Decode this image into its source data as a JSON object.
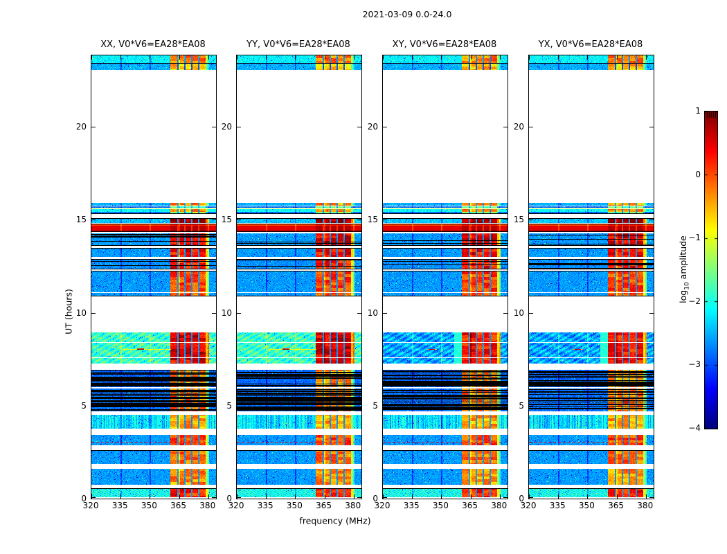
{
  "figure": {
    "title": "2021-03-09 0.0-24.0"
  },
  "axes": {
    "xlabel": "frequency (MHz)",
    "ylabel": "UT (hours)",
    "xlim": [
      320,
      384
    ],
    "ylim": [
      0,
      23.85
    ],
    "xticks": [
      320,
      335,
      350,
      365,
      380
    ],
    "yticks": [
      0,
      5,
      10,
      15,
      20
    ]
  },
  "colorbar": {
    "label_pre": "log",
    "label_sub": "10",
    "label_post": " amplitude",
    "tick_labels": [
      "1",
      "0",
      "−1",
      "−2",
      "−3",
      "−4"
    ],
    "vmin": -4,
    "vmax": 1,
    "colormap": "jet"
  },
  "chart_data": {
    "type": "heatmap",
    "title": "2021-03-09 0.0-24.0",
    "xlabel": "frequency (MHz)",
    "ylabel": "UT (hours)",
    "value_label": "log10 amplitude",
    "value_range": [
      -4,
      1
    ],
    "colormap": "jet",
    "x_range_mhz": [
      320,
      384
    ],
    "y_range_hours": [
      0,
      23.85
    ],
    "panels": [
      {
        "label": "XX, V0*V6=EA28*EA08",
        "polarization": "XX"
      },
      {
        "label": "YY, V0*V6=EA28*EA08",
        "polarization": "YY"
      },
      {
        "label": "XY, V0*V6=EA28*EA08",
        "polarization": "XY"
      },
      {
        "label": "YX, V0*V6=EA28*EA08",
        "polarization": "YX"
      }
    ],
    "rfi_band": {
      "f0": 360.3,
      "f1": 378.6,
      "fade_f1": 380.4,
      "separators": [
        364.2,
        367.8,
        371.4,
        375.0
      ]
    },
    "grid_freqs": [
      335,
      350,
      365,
      380
    ],
    "time_bands": [
      {
        "t0": 0.06,
        "t1": 0.55,
        "base": -2.05,
        "rfi": 0.25,
        "style": "hatch",
        "edgeTop": "black"
      },
      {
        "t0": 0.75,
        "t1": 1.6,
        "base": -2.6,
        "rfi": -0.35,
        "style": "plain"
      },
      {
        "t0": 1.85,
        "t1": 2.62,
        "base": -2.6,
        "rfi": -0.15,
        "style": "plain",
        "edgeTop": "black"
      },
      {
        "t0": 2.87,
        "t1": 3.42,
        "base": -2.6,
        "rfi": 0.0,
        "style": "plain"
      },
      {
        "t0": 3.73,
        "t1": 4.55,
        "base": -2.25,
        "rfi": -0.45,
        "style": "vstreak",
        "edgeTop": "white",
        "edgeBottom": "white"
      },
      {
        "t0": 4.7,
        "t1": 5.93,
        "base": -2.8,
        "rfi": -0.2,
        "style": "plain",
        "stripes": 3,
        "innerDark": [
          5.1
        ]
      },
      {
        "t0": 6.0,
        "t1": 6.95,
        "base": -2.85,
        "rfi": -0.3,
        "style": "plain",
        "stripes": 3
      },
      {
        "t0": 7.27,
        "t1": 8.93,
        "base": -1.85,
        "baseCross": -2.55,
        "rfi": 0.55,
        "rfiCross": 0.3,
        "style": "moire",
        "white": [
          7.62,
          8.42
        ],
        "lead": true
      },
      {
        "t0": 10.9,
        "t1": 12.25,
        "base": -2.6,
        "rfi": 0.05,
        "style": "plain",
        "white": [
          11.1
        ],
        "edgeTop": "black",
        "edgeBottom": "black"
      },
      {
        "t0": 12.35,
        "t1": 12.9,
        "base": -2.65,
        "rfi": 0.3,
        "style": "plain",
        "stripes": 7,
        "edgeTop": "black",
        "edgeBottom": "black"
      },
      {
        "t0": 13.0,
        "t1": 13.5,
        "base": -2.6,
        "rfi": 0.4,
        "style": "plain",
        "edgeTop": "black"
      },
      {
        "t0": 13.62,
        "t1": 14.27,
        "base": -2.6,
        "rfi": 0.5,
        "style": "plain",
        "stripes": 6,
        "edgeBottom": "black"
      },
      {
        "t0": 14.33,
        "t1": 14.8,
        "base": 0.5,
        "rfi": 0.9,
        "style": "saturated",
        "edgeTop": "black",
        "edgeBottom": "black"
      },
      {
        "t0": 14.82,
        "t1": 15.08,
        "base": -2.4,
        "rfi": 0.88,
        "style": "plain",
        "edgeTop": "black"
      },
      {
        "t0": 15.33,
        "t1": 15.44,
        "base": -2.8,
        "rfi": -1.4,
        "style": "plain",
        "edgeBottom": "black"
      },
      {
        "t0": 15.44,
        "t1": 15.58,
        "base": -2.1,
        "rfi": -0.3,
        "style": "plain"
      },
      {
        "t0": 15.62,
        "t1": 15.73,
        "base": -2.85,
        "rfi": -1.6,
        "style": "plain",
        "edgeBottom": "olive"
      },
      {
        "t0": 15.76,
        "t1": 15.92,
        "base": -2.5,
        "rfi": -0.35,
        "style": "plain"
      },
      {
        "t0": 23.05,
        "t1": 23.85,
        "base": -2.15,
        "rfi": -0.2,
        "style": "toprows",
        "innerDark": [
          23.45
        ]
      }
    ],
    "features": {
      "red_dashed_line": {
        "t": 3.06
      },
      "narrow_line": {
        "t": 8.06,
        "f0": 336,
        "f1": 361,
        "core_f0": 343.5,
        "core_f1": 347
      }
    }
  }
}
